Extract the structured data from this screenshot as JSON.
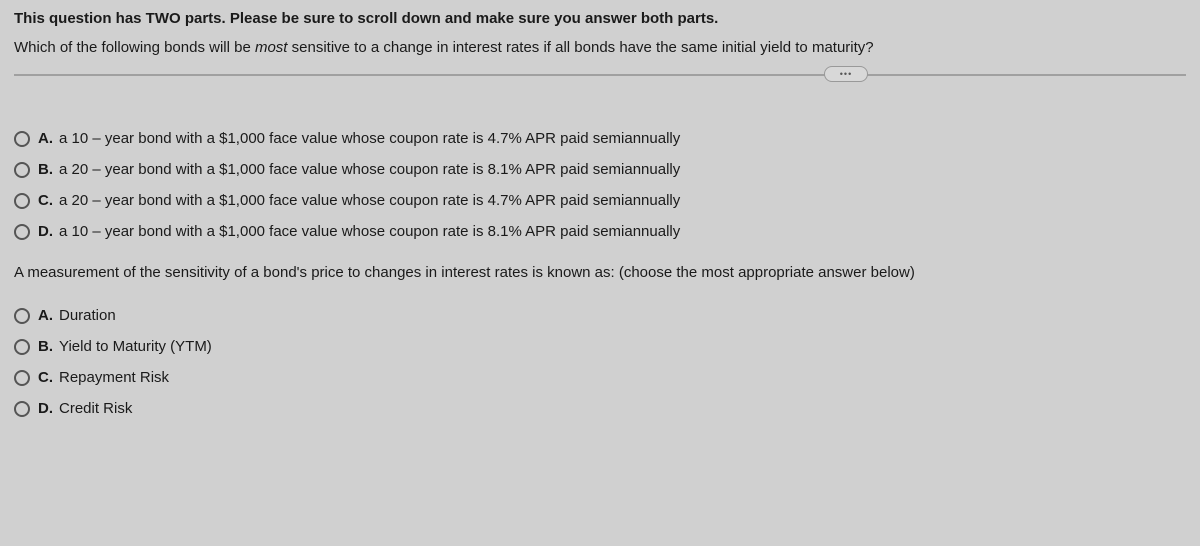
{
  "instruction": "This question has TWO parts.  Please be sure to scroll down and make sure you answer both parts.",
  "question_part1_pre": "Which of the following bonds will be ",
  "question_part1_italic": "most",
  "question_part1_post": " sensitive to a change in interest rates if all bonds have the same initial yield to maturity?",
  "ellipsis": "•••",
  "part1_options": [
    {
      "letter": "A.",
      "pre": "a ",
      "mid": "10 – year",
      "post": " bond with a $1,000 face value whose coupon rate is 4.7% APR paid semiannually"
    },
    {
      "letter": "B.",
      "pre": "a ",
      "mid": "20 – year",
      "post": " bond with a $1,000 face value whose coupon rate is 8.1% APR paid semiannually"
    },
    {
      "letter": "C.",
      "pre": "a ",
      "mid": "20 – year",
      "post": " bond with a $1,000 face value whose coupon rate is 4.7% APR paid semiannually"
    },
    {
      "letter": "D.",
      "pre": "a ",
      "mid": "10 – year",
      "post": " bond with a $1,000 face value whose coupon rate is 8.1% APR paid semiannually"
    }
  ],
  "question_part2": "A measurement of the sensitivity of a bond's price to changes in interest rates is known as: (choose the most appropriate answer below)",
  "part2_options": [
    {
      "letter": "A.",
      "text": "Duration"
    },
    {
      "letter": "B.",
      "text": "Yield to Maturity (YTM)"
    },
    {
      "letter": "C.",
      "text": "Repayment Risk"
    },
    {
      "letter": "D.",
      "text": "Credit Risk"
    }
  ],
  "colors": {
    "background": "#d0d0d0",
    "text": "#1a1a1a",
    "divider": "#a0a0a0",
    "radio_border": "#555555"
  }
}
